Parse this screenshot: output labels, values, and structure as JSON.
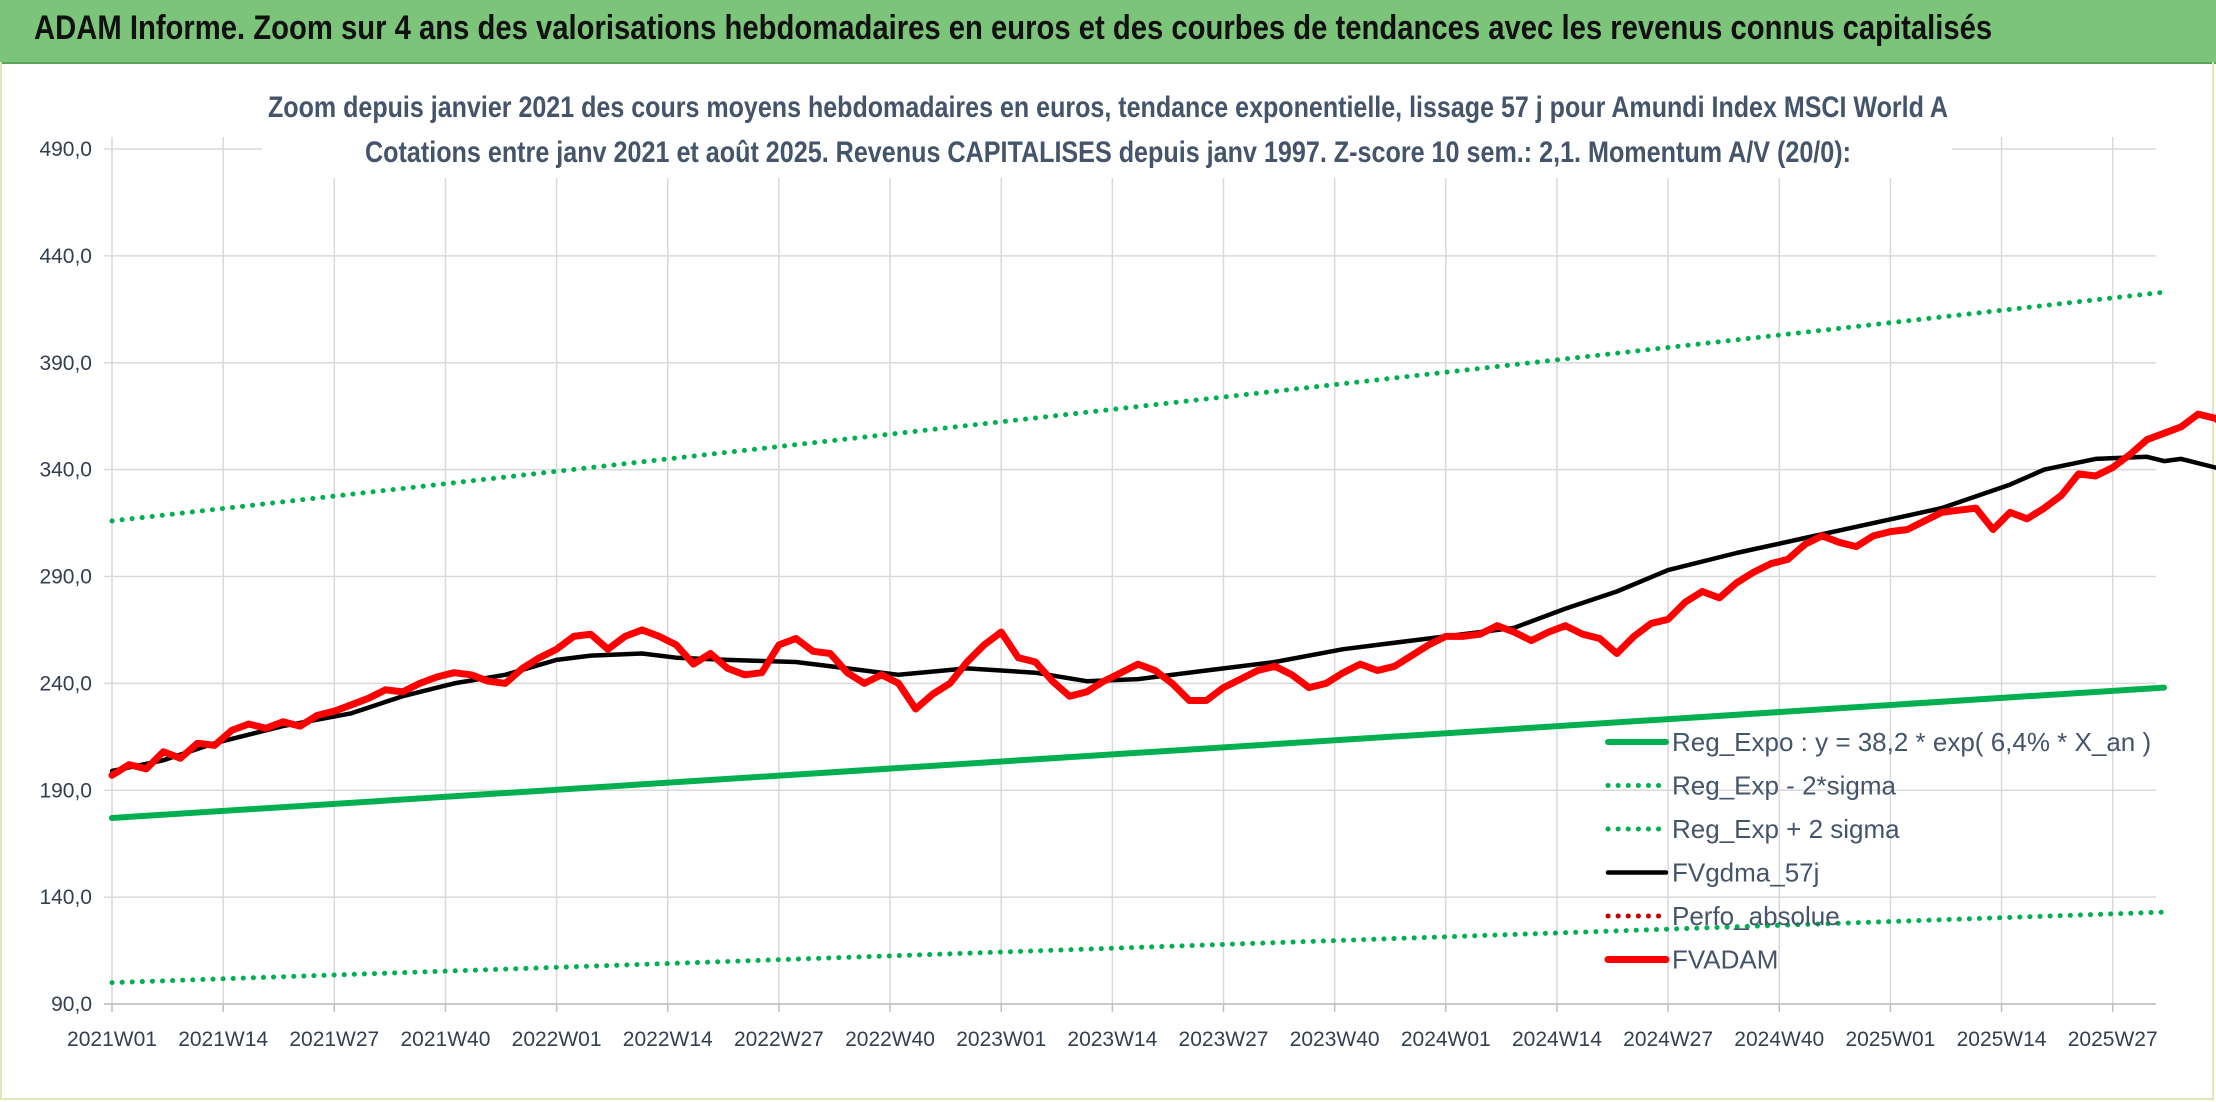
{
  "header": {
    "title": "ADAM Informe. Zoom sur 4 ans des valorisations hebdomadaires en euros et des courbes de tendances avec les revenus connus capitalisés"
  },
  "colors": {
    "banner": "#7dc47b",
    "trend_green": "#00b050",
    "fvadam_red": "#ff0000",
    "fvgdma_black": "#000000",
    "perfo_red": "#c00000",
    "grid": "#d9d9d9"
  },
  "chart_data": {
    "type": "line",
    "title_line1": "Zoom depuis janvier 2021 des cours moyens hebdomadaires en euros, tendance exponentielle, lissage 57 j pour Amundi Index MSCI World A",
    "title_line2": "Cotations entre janv 2021 et août 2025. Revenus CAPITALISES depuis janv 1997. Z-score 10 sem.: 2,1. Momentum A/V (20/0):",
    "ylim": [
      90,
      490
    ],
    "y_ticks": [
      "490,0",
      "440,0",
      "390,0",
      "340,0",
      "290,0",
      "240,0",
      "190,0",
      "140,0",
      "90,0"
    ],
    "x_ticks": [
      "2021W01",
      "2021W14",
      "2021W27",
      "2021W40",
      "2022W01",
      "2022W14",
      "2022W27",
      "2022W40",
      "2023W01",
      "2023W14",
      "2023W27",
      "2023W40",
      "2024W01",
      "2024W14",
      "2024W27",
      "2024W40",
      "2025W01",
      "2025W14",
      "2025W27"
    ],
    "x_range_weeks": [
      0,
      240
    ],
    "grid": true,
    "legend_position": "bottom-right",
    "series": [
      {
        "name": "Reg_Expo : y = 38,2 * exp( 6,4% *  X_an )",
        "style": "solid-thick",
        "color": "#00b050",
        "points": [
          [
            0,
            177
          ],
          [
            240,
            238
          ]
        ]
      },
      {
        "name": "Reg_Exp - 2*sigma",
        "style": "dotted",
        "color": "#00b050",
        "points": [
          [
            0,
            100
          ],
          [
            240,
            133
          ]
        ]
      },
      {
        "name": "Reg_Exp + 2 sigma",
        "style": "dotted",
        "color": "#00b050",
        "points": [
          [
            0,
            316
          ],
          [
            240,
            423
          ]
        ]
      },
      {
        "name": "FVgdma_57j",
        "style": "solid",
        "color": "#000000",
        "points": [
          [
            0,
            199
          ],
          [
            6,
            204
          ],
          [
            12,
            212
          ],
          [
            20,
            220
          ],
          [
            28,
            226
          ],
          [
            34,
            234
          ],
          [
            40,
            240
          ],
          [
            46,
            244
          ],
          [
            52,
            251
          ],
          [
            56,
            253
          ],
          [
            62,
            254
          ],
          [
            66,
            252
          ],
          [
            72,
            251
          ],
          [
            80,
            250
          ],
          [
            86,
            247
          ],
          [
            92,
            244
          ],
          [
            100,
            247
          ],
          [
            108,
            245
          ],
          [
            114,
            241
          ],
          [
            120,
            242
          ],
          [
            128,
            246
          ],
          [
            136,
            250
          ],
          [
            144,
            256
          ],
          [
            152,
            260
          ],
          [
            160,
            264
          ],
          [
            164,
            266
          ],
          [
            170,
            275
          ],
          [
            176,
            283
          ],
          [
            182,
            293
          ],
          [
            190,
            301
          ],
          [
            198,
            308
          ],
          [
            206,
            315
          ],
          [
            214,
            322
          ],
          [
            222,
            333
          ],
          [
            226,
            340
          ],
          [
            232,
            345
          ],
          [
            238,
            346
          ],
          [
            240,
            344
          ],
          [
            242,
            345
          ],
          [
            246,
            341
          ],
          [
            250,
            336
          ],
          [
            254,
            332
          ],
          [
            258,
            333
          ],
          [
            264,
            337
          ],
          [
            270,
            341
          ],
          [
            276,
            345
          ]
        ]
      },
      {
        "name": "Perfo_absolue",
        "style": "dotted",
        "color": "#c00000",
        "points": []
      },
      {
        "name": "FVADAM",
        "style": "solid-thick",
        "color": "#ff0000",
        "points": [
          [
            0,
            197
          ],
          [
            2,
            202
          ],
          [
            4,
            200
          ],
          [
            6,
            208
          ],
          [
            8,
            205
          ],
          [
            10,
            212
          ],
          [
            12,
            211
          ],
          [
            14,
            218
          ],
          [
            16,
            221
          ],
          [
            18,
            219
          ],
          [
            20,
            222
          ],
          [
            22,
            220
          ],
          [
            24,
            225
          ],
          [
            26,
            227
          ],
          [
            28,
            230
          ],
          [
            30,
            233
          ],
          [
            32,
            237
          ],
          [
            34,
            236
          ],
          [
            36,
            240
          ],
          [
            38,
            243
          ],
          [
            40,
            245
          ],
          [
            42,
            244
          ],
          [
            44,
            241
          ],
          [
            46,
            240
          ],
          [
            48,
            247
          ],
          [
            50,
            252
          ],
          [
            52,
            256
          ],
          [
            54,
            262
          ],
          [
            56,
            263
          ],
          [
            58,
            256
          ],
          [
            60,
            262
          ],
          [
            62,
            265
          ],
          [
            64,
            262
          ],
          [
            66,
            258
          ],
          [
            68,
            249
          ],
          [
            70,
            254
          ],
          [
            72,
            247
          ],
          [
            74,
            244
          ],
          [
            76,
            245
          ],
          [
            78,
            258
          ],
          [
            80,
            261
          ],
          [
            82,
            255
          ],
          [
            84,
            254
          ],
          [
            86,
            245
          ],
          [
            88,
            240
          ],
          [
            90,
            244
          ],
          [
            92,
            240
          ],
          [
            94,
            228
          ],
          [
            96,
            235
          ],
          [
            98,
            240
          ],
          [
            100,
            250
          ],
          [
            102,
            258
          ],
          [
            104,
            264
          ],
          [
            106,
            252
          ],
          [
            108,
            250
          ],
          [
            110,
            241
          ],
          [
            112,
            234
          ],
          [
            114,
            236
          ],
          [
            116,
            241
          ],
          [
            118,
            245
          ],
          [
            120,
            249
          ],
          [
            122,
            246
          ],
          [
            124,
            240
          ],
          [
            126,
            232
          ],
          [
            128,
            232
          ],
          [
            130,
            238
          ],
          [
            132,
            242
          ],
          [
            134,
            246
          ],
          [
            136,
            248
          ],
          [
            138,
            244
          ],
          [
            140,
            238
          ],
          [
            142,
            240
          ],
          [
            144,
            245
          ],
          [
            146,
            249
          ],
          [
            148,
            246
          ],
          [
            150,
            248
          ],
          [
            152,
            253
          ],
          [
            154,
            258
          ],
          [
            156,
            262
          ],
          [
            158,
            262
          ],
          [
            160,
            263
          ],
          [
            162,
            267
          ],
          [
            164,
            264
          ],
          [
            166,
            260
          ],
          [
            168,
            264
          ],
          [
            170,
            267
          ],
          [
            172,
            263
          ],
          [
            174,
            261
          ],
          [
            176,
            254
          ],
          [
            178,
            262
          ],
          [
            180,
            268
          ],
          [
            182,
            270
          ],
          [
            184,
            278
          ],
          [
            186,
            283
          ],
          [
            188,
            280
          ],
          [
            190,
            287
          ],
          [
            192,
            292
          ],
          [
            194,
            296
          ],
          [
            196,
            298
          ],
          [
            198,
            305
          ],
          [
            200,
            309
          ],
          [
            202,
            306
          ],
          [
            204,
            304
          ],
          [
            206,
            309
          ],
          [
            208,
            311
          ],
          [
            210,
            312
          ],
          [
            212,
            316
          ],
          [
            214,
            320
          ],
          [
            216,
            321
          ],
          [
            218,
            322
          ],
          [
            220,
            312
          ],
          [
            222,
            320
          ],
          [
            224,
            317
          ],
          [
            226,
            322
          ],
          [
            228,
            328
          ],
          [
            230,
            338
          ],
          [
            232,
            337
          ],
          [
            234,
            341
          ],
          [
            236,
            347
          ],
          [
            238,
            354
          ],
          [
            240,
            357
          ],
          [
            242,
            360
          ],
          [
            244,
            366
          ],
          [
            246,
            364
          ],
          [
            248,
            358
          ],
          [
            250,
            330
          ],
          [
            252,
            336
          ],
          [
            254,
            300
          ],
          [
            256,
            308
          ],
          [
            258,
            330
          ],
          [
            260,
            338
          ],
          [
            262,
            336
          ],
          [
            264,
            339
          ],
          [
            266,
            336
          ],
          [
            268,
            338
          ],
          [
            270,
            342
          ],
          [
            272,
            344
          ],
          [
            274,
            347
          ],
          [
            276,
            351
          ]
        ]
      }
    ]
  }
}
